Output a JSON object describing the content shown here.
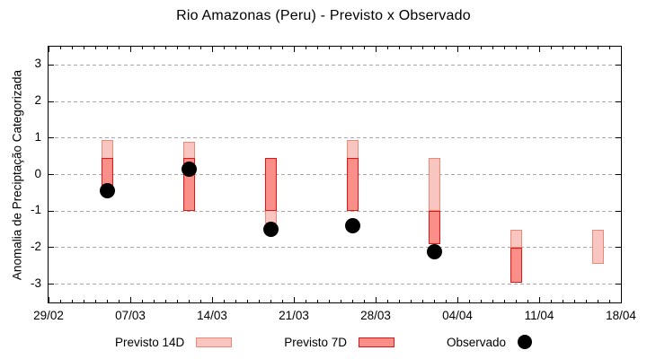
{
  "title": "Rio Amazonas (Peru) - Previsto x Observado",
  "axes": {
    "y_label": "Anomalia de Preciptação Categorizada",
    "y_ticks": [
      3,
      2,
      1,
      0,
      -1,
      -2,
      -3
    ],
    "x_ticks": [
      "29/02",
      "07/03",
      "14/03",
      "21/03",
      "28/03",
      "04/04",
      "11/04",
      "18/04"
    ]
  },
  "legend": [
    {
      "label": "Previsto 14D",
      "swatch": "box",
      "fill": "#f9c5c0",
      "border": "#f08878"
    },
    {
      "label": "Previsto 7D",
      "swatch": "box",
      "fill": "#fa8e88",
      "border": "#e81210"
    },
    {
      "label": "Observado",
      "swatch": "dot",
      "fill": "#000000"
    }
  ],
  "chart_data": {
    "type": "bar",
    "subtype": "range-bars-with-scatter",
    "title": "Rio Amazonas (Peru) - Previsto x Observado",
    "xlabel": "",
    "ylabel": "Anomalia de Preciptação Categorizada",
    "x_range": [
      "29/02",
      "18/04"
    ],
    "x_major_tick_interval_days": 7,
    "x_minor_tick_interval_days": 1,
    "ylim": [
      -3.5,
      3.5
    ],
    "grid": "horizontal-dashed",
    "grid_color": "#a8a8a8",
    "legend_position": "bottom-center",
    "series": [
      {
        "name": "Previsto 14D",
        "type": "range-bar",
        "fill": "#f9c5c0",
        "border": "#f08878",
        "points": [
          {
            "date": "05/03",
            "low": -0.45,
            "high": 0.95
          },
          {
            "date": "12/03",
            "low": -1.0,
            "high": 0.9
          },
          {
            "date": "19/03",
            "low": -1.35,
            "high": 0.45
          },
          {
            "date": "26/03",
            "low": -1.0,
            "high": 0.95
          },
          {
            "date": "02/04",
            "low": -1.0,
            "high": 0.45
          },
          {
            "date": "09/04",
            "low": -2.0,
            "high": -1.5
          },
          {
            "date": "16/04",
            "low": -2.45,
            "high": -1.5
          }
        ]
      },
      {
        "name": "Previsto 7D",
        "type": "range-bar",
        "fill": "#fa8e88",
        "border": "#e81210",
        "points": [
          {
            "date": "05/03",
            "low": -0.45,
            "high": 0.45
          },
          {
            "date": "12/03",
            "low": -1.0,
            "high": 0.45
          },
          {
            "date": "19/03",
            "low": -1.0,
            "high": 0.45
          },
          {
            "date": "26/03",
            "low": -1.0,
            "high": 0.45
          },
          {
            "date": "02/04",
            "low": -1.9,
            "high": -1.0
          },
          {
            "date": "09/04",
            "low": -2.95,
            "high": -2.0
          }
        ]
      },
      {
        "name": "Observado",
        "type": "scatter",
        "fill": "#000000",
        "points": [
          {
            "date": "05/03",
            "value": -0.45
          },
          {
            "date": "12/03",
            "value": 0.15
          },
          {
            "date": "19/03",
            "value": -1.5
          },
          {
            "date": "26/03",
            "value": -1.4
          },
          {
            "date": "02/04",
            "value": -2.1
          }
        ]
      }
    ]
  }
}
